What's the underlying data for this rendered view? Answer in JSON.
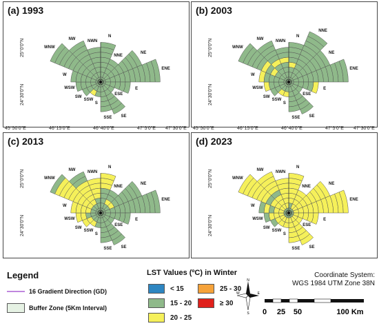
{
  "colors": {
    "green": "#8fb98a",
    "yellow": "#f5f05a",
    "blue": "#2e86c1",
    "orange": "#f5a23a",
    "red": "#e0201b",
    "line": "#555555",
    "gd": "#9b3fc9"
  },
  "coords": {
    "top": [
      "45°50'0\"E",
      "46°15'0\"E",
      "46°40'0\"E",
      "47°5'0\"E",
      "47°30'0\"E"
    ],
    "left_top": "25°0'0\"N",
    "left_bottom": "24°30'0\"N"
  },
  "directions": [
    "N",
    "NNE",
    "NE",
    "ENE",
    "E",
    "ESE",
    "SE",
    "SSE",
    "S",
    "SSW",
    "SW",
    "WSW",
    "W",
    "WNW",
    "NW",
    "NWN"
  ],
  "panels": [
    {
      "title": "(a) 1993",
      "radii": [
        8,
        5,
        9,
        12,
        6,
        3,
        7,
        6,
        3,
        3,
        4,
        5,
        6,
        11,
        9,
        7
      ],
      "yellow": [
        [
          9,
          2
        ]
      ]
    },
    {
      "title": "(b) 2003",
      "radii": [
        8,
        11,
        9,
        12,
        6,
        3,
        7,
        6,
        3,
        3,
        4,
        5,
        6,
        11,
        9,
        7
      ],
      "yellow": [
        [
          12,
          6
        ],
        [
          13,
          5
        ],
        [
          12,
          5
        ],
        [
          11,
          4
        ],
        [
          10,
          4
        ],
        [
          13,
          3
        ],
        [
          14,
          4
        ],
        [
          4,
          5
        ],
        [
          9,
          2
        ],
        [
          8,
          2
        ],
        [
          0,
          3
        ],
        [
          15,
          4
        ]
      ]
    },
    {
      "title": "(c) 2013",
      "radii": [
        8,
        5,
        9,
        12,
        6,
        3,
        7,
        6,
        3,
        3,
        4,
        5,
        6,
        11,
        9,
        7
      ],
      "yellow": [
        [
          12,
          6
        ],
        [
          12,
          5
        ],
        [
          12,
          4
        ],
        [
          12,
          3
        ],
        [
          12,
          2
        ],
        [
          11,
          5
        ],
        [
          11,
          4
        ],
        [
          11,
          3
        ],
        [
          13,
          9
        ],
        [
          13,
          8
        ],
        [
          13,
          7
        ],
        [
          13,
          6
        ],
        [
          13,
          5
        ],
        [
          13,
          4
        ],
        [
          13,
          3
        ],
        [
          13,
          2
        ],
        [
          14,
          6
        ],
        [
          14,
          5
        ],
        [
          14,
          4
        ],
        [
          14,
          3
        ],
        [
          14,
          2
        ],
        [
          15,
          6
        ],
        [
          15,
          5
        ],
        [
          15,
          4
        ],
        [
          15,
          3
        ],
        [
          0,
          7
        ],
        [
          0,
          6
        ],
        [
          0,
          5
        ],
        [
          10,
          3
        ],
        [
          10,
          2
        ],
        [
          9,
          3
        ],
        [
          9,
          2
        ],
        [
          2,
          2
        ],
        [
          1,
          2
        ]
      ]
    },
    {
      "title": "(d) 2023",
      "radii": [
        8,
        5,
        9,
        12,
        6,
        3,
        7,
        6,
        3,
        3,
        4,
        5,
        6,
        11,
        9,
        7
      ],
      "greenOnly": [
        [
          12,
          5
        ],
        [
          11,
          4
        ],
        [
          10,
          3
        ],
        [
          13,
          4
        ],
        [
          14,
          4
        ],
        [
          12,
          3
        ],
        [
          0,
          1
        ],
        [
          4,
          0
        ],
        [
          5,
          0
        ]
      ]
    }
  ],
  "legend": {
    "title": "Legend",
    "gd_label": "16 Gradient Direction (GD)",
    "buffer_label": "Buffer Zone (5Km Interval)",
    "lst_title": "LST Values (ºC) in Winter",
    "classes": [
      {
        "label": "< 15",
        "color": "#2e86c1"
      },
      {
        "label": "15 - 20",
        "color": "#8fb98a"
      },
      {
        "label": "20 - 25",
        "color": "#f5f05a"
      },
      {
        "label": "25 - 30",
        "color": "#f5a23a"
      },
      {
        "label": "≥ 30",
        "color": "#e0201b"
      }
    ],
    "coord_system": [
      "Coordinate System:",
      "WGS 1984 UTM Zone 38N"
    ],
    "scale_labels": [
      "0",
      "25",
      "50",
      "100 Km"
    ],
    "north_labels": [
      "N",
      "E",
      "S",
      "W"
    ]
  }
}
